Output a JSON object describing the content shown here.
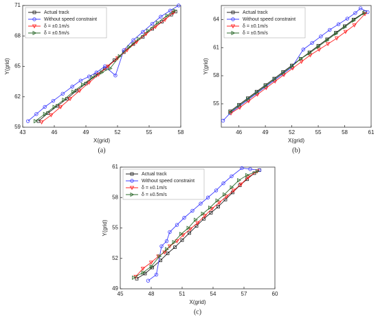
{
  "chart_data": [
    {
      "type": "line",
      "caption": "(a)",
      "x_label": "X(grid)",
      "y_label": "Y(grid)",
      "xlim": [
        43,
        58
      ],
      "xticks": [
        43,
        46,
        49,
        52,
        55,
        58
      ],
      "ylim": [
        59,
        71
      ],
      "yticks": [
        59,
        62,
        65,
        68,
        71
      ],
      "legend": "upper left",
      "series": [
        {
          "name": "Actual track",
          "color": "#222222",
          "marker": "square",
          "x": [
            44.5,
            45.4,
            46.3,
            47.2,
            48.1,
            49.0,
            49.9,
            50.8,
            51.7,
            52.6,
            53.5,
            54.4,
            55.3,
            56.2,
            57.1,
            57.5
          ],
          "values": [
            59.6,
            60.4,
            61.1,
            61.8,
            62.6,
            63.3,
            64.1,
            64.8,
            65.6,
            66.4,
            67.2,
            67.9,
            68.7,
            69.4,
            70.1,
            70.4
          ]
        },
        {
          "name": "Without speed constraint",
          "color": "#3b3bff",
          "marker": "circle",
          "x": [
            43.5,
            44.3,
            45.1,
            45.9,
            46.8,
            47.7,
            48.5,
            49.3,
            50.0,
            50.8,
            51.8,
            52.6,
            53.5,
            54.4,
            55.3,
            56.1,
            57.0,
            57.8
          ],
          "values": [
            59.6,
            60.3,
            61.0,
            61.6,
            62.3,
            63.0,
            63.6,
            64.0,
            64.4,
            65.0,
            64.1,
            66.6,
            67.6,
            68.4,
            69.2,
            69.9,
            70.5,
            71.0
          ]
        },
        {
          "name": "δ = ±0.1m/s",
          "color": "#ff2020",
          "marker": "tri-down",
          "x": [
            44.8,
            45.7,
            46.6,
            47.5,
            48.4,
            49.3,
            50.2,
            51.1,
            52.0,
            52.9,
            53.8,
            54.7,
            55.6,
            56.5,
            57.3
          ],
          "values": [
            59.5,
            60.2,
            61.0,
            61.8,
            62.6,
            63.4,
            64.2,
            65.0,
            65.8,
            66.6,
            67.4,
            68.2,
            68.9,
            69.6,
            70.3
          ]
        },
        {
          "name": "δ = ±0.5m/s",
          "color": "#2e6b2e",
          "marker": "tri-right",
          "x": [
            44.2,
            45.1,
            46.0,
            46.9,
            47.8,
            48.7,
            49.6,
            50.5,
            51.3,
            52.2,
            53.1,
            54.0,
            54.9,
            55.8,
            56.7,
            57.4
          ],
          "values": [
            59.6,
            60.3,
            61.0,
            61.7,
            62.5,
            63.2,
            63.9,
            64.4,
            64.8,
            66.0,
            66.9,
            67.7,
            68.5,
            69.3,
            70.0,
            70.5
          ]
        }
      ]
    },
    {
      "type": "line",
      "caption": "(b)",
      "x_label": "X(grid)",
      "y_label": "Y(grid)",
      "xlim": [
        44,
        61
      ],
      "xticks": [
        46,
        49,
        52,
        55,
        58,
        61
      ],
      "ylim": [
        52.5,
        65.5
      ],
      "yticks": [
        55,
        58,
        61,
        64
      ],
      "legend": "upper left",
      "series": [
        {
          "name": "Actual track",
          "color": "#222222",
          "marker": "square",
          "x": [
            45.0,
            46.0,
            47.0,
            48.0,
            49.0,
            50.0,
            51.0,
            52.0,
            53.0,
            54.0,
            55.0,
            56.0,
            57.0,
            58.0,
            59.0,
            60.3
          ],
          "values": [
            54.2,
            54.9,
            55.6,
            56.3,
            57.0,
            57.7,
            58.4,
            59.1,
            59.8,
            60.5,
            61.2,
            61.9,
            62.6,
            63.3,
            64.0,
            64.8
          ]
        },
        {
          "name": "Without speed constraint",
          "color": "#3b3bff",
          "marker": "circle",
          "x": [
            44.2,
            45.0,
            46.0,
            47.0,
            48.0,
            49.0,
            50.0,
            51.0,
            52.0,
            53.3,
            54.3,
            55.3,
            56.3,
            57.3,
            58.3,
            59.2,
            59.8,
            60.6
          ],
          "values": [
            53.2,
            54.0,
            54.7,
            55.4,
            56.1,
            56.8,
            57.5,
            58.2,
            58.9,
            60.8,
            61.5,
            62.2,
            62.9,
            63.5,
            64.1,
            64.7,
            65.2,
            64.8
          ]
        },
        {
          "name": "δ = ±0.1m/s",
          "color": "#ff2020",
          "marker": "tri-down",
          "x": [
            45.1,
            46.1,
            47.1,
            48.1,
            49.1,
            50.1,
            51.1,
            52.1,
            53.1,
            54.1,
            55.1,
            56.1,
            57.1,
            58.1,
            59.1,
            60.3
          ],
          "values": [
            54.0,
            54.6,
            55.3,
            56.0,
            56.7,
            57.4,
            58.1,
            58.8,
            59.5,
            60.2,
            60.8,
            61.4,
            62.0,
            62.7,
            63.4,
            64.6
          ]
        },
        {
          "name": "δ = ±0.5m/s",
          "color": "#2e6b2e",
          "marker": "tri-right",
          "x": [
            45.0,
            46.0,
            47.0,
            48.0,
            49.0,
            50.0,
            51.0,
            52.0,
            53.0,
            54.0,
            55.0,
            56.0,
            57.0,
            58.0,
            59.0,
            60.2
          ],
          "values": [
            54.1,
            54.8,
            55.5,
            56.2,
            56.9,
            57.6,
            58.3,
            59.0,
            59.8,
            60.4,
            61.1,
            61.8,
            62.5,
            63.2,
            63.9,
            64.7
          ]
        }
      ]
    },
    {
      "type": "line",
      "caption": "(c)",
      "x_label": "X(grid)",
      "y_label": "Y(grid)",
      "xlim": [
        45,
        60
      ],
      "xticks": [
        45,
        48,
        51,
        54,
        57,
        60
      ],
      "ylim": [
        49,
        61
      ],
      "yticks": [
        49,
        52,
        55,
        58,
        61
      ],
      "legend": "upper left",
      "series": [
        {
          "name": "Actual track",
          "color": "#222222",
          "marker": "square",
          "x": [
            46.6,
            47.4,
            48.1,
            48.9,
            49.6,
            50.3,
            51.0,
            51.7,
            52.4,
            53.1,
            53.8,
            54.5,
            55.2,
            55.9,
            56.6,
            57.3,
            58.0,
            58.5
          ],
          "values": [
            50.0,
            50.5,
            51.1,
            51.8,
            52.5,
            53.1,
            53.8,
            54.5,
            55.2,
            55.9,
            56.5,
            57.1,
            57.8,
            58.5,
            59.2,
            59.8,
            60.4,
            60.7
          ]
        },
        {
          "name": "Without speed constraint",
          "color": "#3b3bff",
          "marker": "circle",
          "x": [
            47.7,
            48.5,
            49.0,
            49.5,
            49.8,
            50.5,
            51.2,
            52.0,
            52.8,
            53.5,
            54.3,
            55.0,
            55.8,
            56.8,
            57.6,
            58.5
          ],
          "values": [
            49.8,
            50.4,
            53.2,
            53.7,
            54.6,
            55.3,
            56.0,
            56.7,
            57.4,
            58.0,
            58.7,
            59.4,
            60.1,
            60.9,
            60.8,
            60.7
          ]
        },
        {
          "name": "δ = ±0.1m/s",
          "color": "#ff2020",
          "marker": "tri-down",
          "x": [
            46.5,
            47.2,
            48.0,
            48.7,
            49.3,
            49.8,
            50.5,
            51.1,
            51.8,
            52.5,
            53.2,
            53.9,
            54.6,
            55.3,
            56.0,
            56.7,
            57.4,
            58.3
          ],
          "values": [
            50.2,
            51.0,
            51.6,
            52.2,
            52.6,
            53.2,
            53.7,
            54.3,
            54.9,
            55.5,
            56.2,
            56.9,
            57.5,
            58.1,
            58.7,
            59.3,
            60.0,
            60.6
          ]
        },
        {
          "name": "δ = ±0.5m/s",
          "color": "#2e6b2e",
          "marker": "tri-right",
          "x": [
            46.3,
            47.2,
            48.0,
            48.8,
            49.5,
            50.2,
            50.9,
            51.6,
            52.3,
            53.0,
            53.7,
            54.4,
            55.1,
            55.8,
            56.5,
            57.3,
            58.3
          ],
          "values": [
            50.1,
            50.6,
            51.2,
            52.2,
            52.9,
            53.6,
            54.4,
            55.0,
            55.8,
            56.4,
            57.0,
            57.7,
            58.3,
            59.0,
            59.7,
            60.2,
            60.6
          ]
        }
      ]
    }
  ]
}
